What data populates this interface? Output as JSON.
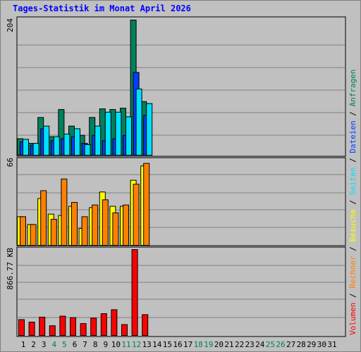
{
  "title": "Tages-Statistik im Monat April 2026",
  "colors": {
    "background": "#c0c0c0",
    "title": "#0000ff",
    "text": "#000000",
    "anfragen": "#00805c",
    "dateien": "#0040ff",
    "seiten": "#00e0ff",
    "besuche": "#ffff00",
    "rechner": "#ff8000",
    "volumen": "#ff0000",
    "weekend_label": "#00805c"
  },
  "right_legend": {
    "panel1": [
      "Anfragen",
      "/",
      "Dateien",
      "/",
      "Seiten",
      "/",
      "Besuche",
      "/",
      "Rechner",
      "/",
      "Volumen"
    ]
  },
  "chart_data": [
    {
      "type": "bar",
      "panel": "requests",
      "y_max_label": "204",
      "ylim": [
        0,
        204
      ],
      "categories": [
        "1",
        "2",
        "3",
        "4",
        "5",
        "6",
        "7",
        "8",
        "9",
        "10",
        "11",
        "12",
        "13",
        "14",
        "15",
        "16",
        "17",
        "18",
        "19",
        "20",
        "21",
        "22",
        "23",
        "24",
        "25",
        "26",
        "27",
        "28",
        "29",
        "30",
        "31"
      ],
      "weekend_days": [
        4,
        5,
        11,
        12,
        18,
        19,
        25,
        26
      ],
      "series": [
        {
          "name": "Anfragen",
          "color": "#00805c",
          "values": [
            25,
            18,
            57,
            28,
            69,
            44,
            30,
            57,
            70,
            69,
            71,
            204,
            81,
            0,
            0,
            0,
            0,
            0,
            0,
            0,
            0,
            0,
            0,
            0,
            0,
            0,
            0,
            0,
            0,
            0,
            0
          ]
        },
        {
          "name": "Dateien",
          "color": "#0040ff",
          "values": [
            20,
            15,
            40,
            22,
            25,
            28,
            18,
            30,
            22,
            25,
            30,
            125,
            60,
            0,
            0,
            0,
            0,
            0,
            0,
            0,
            0,
            0,
            0,
            0,
            0,
            0,
            0,
            0,
            0,
            0,
            0
          ]
        },
        {
          "name": "Seiten",
          "color": "#00e0ff",
          "values": [
            24,
            18,
            44,
            28,
            32,
            40,
            16,
            44,
            65,
            65,
            58,
            100,
            78,
            0,
            0,
            0,
            0,
            0,
            0,
            0,
            0,
            0,
            0,
            0,
            0,
            0,
            0,
            0,
            0,
            0,
            0
          ]
        }
      ]
    },
    {
      "type": "bar",
      "panel": "visits",
      "y_max_label": "66",
      "ylim": [
        0,
        66
      ],
      "series": [
        {
          "name": "Besuche",
          "color": "#ffff00",
          "values": [
            22,
            16,
            36,
            24,
            23,
            30,
            13,
            29,
            41,
            30,
            30,
            50,
            61,
            0,
            0,
            0,
            0,
            0,
            0,
            0,
            0,
            0,
            0,
            0,
            0,
            0,
            0,
            0,
            0,
            0,
            0
          ]
        },
        {
          "name": "Rechner",
          "color": "#ff8000",
          "values": [
            22,
            16,
            42,
            20,
            51,
            33,
            22,
            31,
            35,
            25,
            31,
            47,
            63,
            0,
            0,
            0,
            0,
            0,
            0,
            0,
            0,
            0,
            0,
            0,
            0,
            0,
            0,
            0,
            0,
            0,
            0
          ]
        }
      ]
    },
    {
      "type": "bar",
      "panel": "volume",
      "y_max_label": "866.77 KB",
      "ylim": [
        0,
        866.77
      ],
      "series": [
        {
          "name": "Volumen",
          "color": "#ff0000",
          "values": [
            160,
            135,
            185,
            98,
            195,
            180,
            120,
            175,
            220,
            260,
            110,
            866.77,
            210,
            0,
            0,
            0,
            0,
            0,
            0,
            0,
            0,
            0,
            0,
            0,
            0,
            0,
            0,
            0,
            0,
            0,
            0
          ]
        }
      ]
    }
  ]
}
